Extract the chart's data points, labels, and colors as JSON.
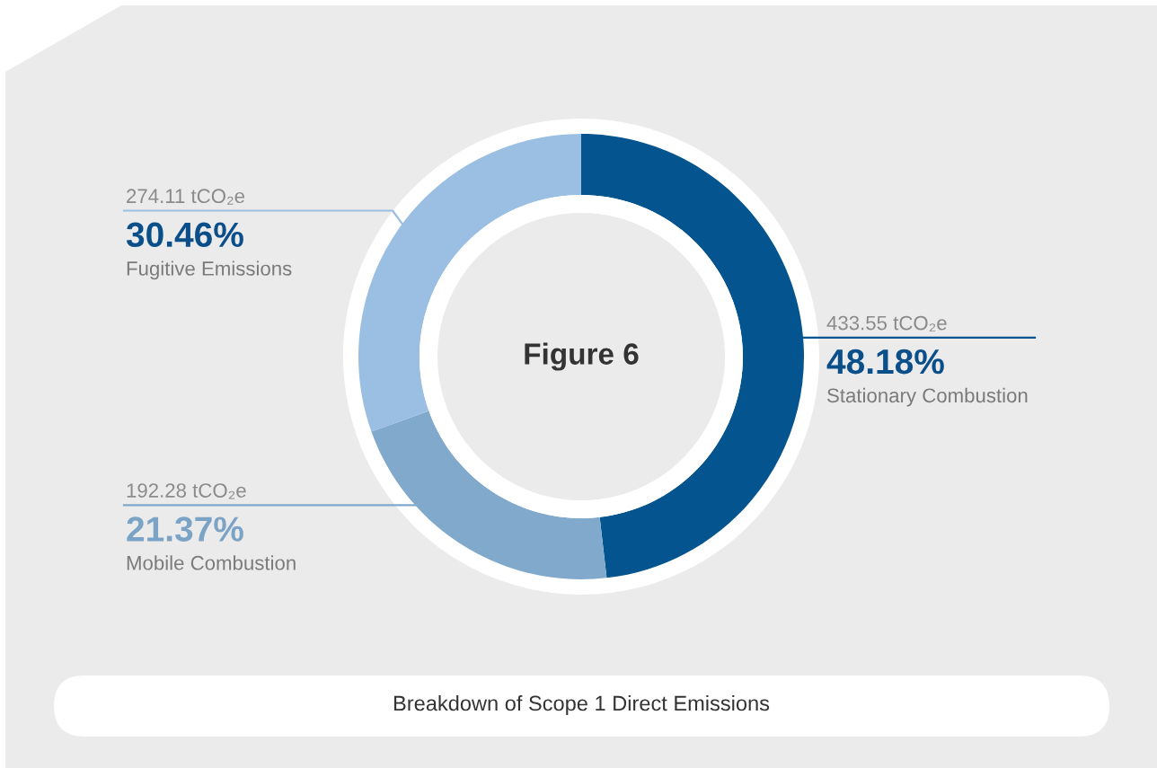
{
  "chart_data": {
    "type": "donut",
    "title": "Figure 6",
    "subtitle": "Breakdown of Scope 1 Direct Emissions",
    "categories": [
      "Stationary Combustion",
      "Mobile Combustion",
      "Fugitive Emissions"
    ],
    "values": [
      48.18,
      21.37,
      30.46
    ],
    "value_labels": [
      "48.18%",
      "21.37%",
      "30.46%"
    ],
    "colors": [
      "#03548f",
      "#80a9cb",
      "#9bbfe2"
    ],
    "annotations": [
      "433.55 tCO₂e",
      "192.28 tCO₂e",
      "274.11 tCO₂e"
    ]
  }
}
